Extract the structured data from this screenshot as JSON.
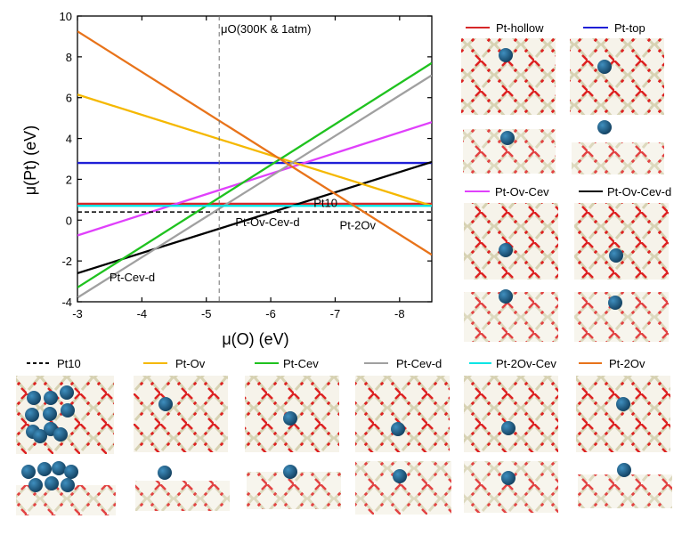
{
  "chart_data": {
    "type": "line",
    "xlabel": "μ(O) (eV)",
    "ylabel": "μ(Pt) (eV)",
    "xlim": [
      -3,
      -8.5
    ],
    "ylim": [
      -4,
      10
    ],
    "x_ticks": [
      "-3",
      "-4",
      "-5",
      "-6",
      "-7",
      "-8"
    ],
    "y_ticks": [
      "-4",
      "-2",
      "0",
      "2",
      "4",
      "6",
      "8",
      "10"
    ],
    "reference_line": {
      "x": -5.2,
      "label": "μO(300K & 1atm)"
    },
    "series": [
      {
        "name": "Pt-hollow",
        "color": "#d62728",
        "x": [
          -3,
          -8.5
        ],
        "y": [
          0.8,
          0.8
        ]
      },
      {
        "name": "Pt-top",
        "color": "#1f1fd6",
        "x": [
          -3,
          -8.5
        ],
        "y": [
          2.8,
          2.8
        ]
      },
      {
        "name": "Pt-Ov-Cev",
        "color": "#e040fb",
        "x": [
          -3,
          -8.5
        ],
        "y": [
          -0.75,
          4.8
        ]
      },
      {
        "name": "Pt-Ov-Cev-d",
        "color": "#000000",
        "x": [
          -3,
          -8.5
        ],
        "y": [
          -2.6,
          2.85
        ]
      },
      {
        "name": "Pt10",
        "color": "#000000",
        "x": [
          -3,
          -8.5
        ],
        "y": [
          0.4,
          0.4
        ],
        "dashed": true
      },
      {
        "name": "Pt-Ov",
        "color": "#f5b800",
        "x": [
          -3,
          -8.5
        ],
        "y": [
          6.15,
          0.7
        ]
      },
      {
        "name": "Pt-Cev",
        "color": "#1fc21f",
        "x": [
          -3,
          -8.5
        ],
        "y": [
          -3.3,
          7.7
        ]
      },
      {
        "name": "Pt-Cev-d",
        "color": "#a0a0a0",
        "x": [
          -3,
          -8.5
        ],
        "y": [
          -3.8,
          7.1
        ]
      },
      {
        "name": "Pt-2Ov-Cev",
        "color": "#00e5e5",
        "x": [
          -3,
          -8.5
        ],
        "y": [
          0.7,
          0.7
        ]
      },
      {
        "name": "Pt-2Ov",
        "color": "#e8731a",
        "x": [
          -3,
          -8.5
        ],
        "y": [
          9.25,
          -1.7
        ]
      }
    ],
    "annotations": [
      {
        "text": "Pt-Ov-Cev-d",
        "x": -5.95,
        "y": -0.3
      },
      {
        "text": "Pt10",
        "x": -6.85,
        "y": 0.65
      },
      {
        "text": "Pt-2Ov",
        "x": -7.35,
        "y": -0.45
      },
      {
        "text": "Pt-Cev-d",
        "x": -3.85,
        "y": -3.0
      }
    ]
  },
  "legend": {
    "right_panel": [
      {
        "label": "Pt-hollow",
        "color": "#d62728"
      },
      {
        "label": "Pt-top",
        "color": "#1f1fd6"
      },
      {
        "label": "Pt-Ov-Cev",
        "color": "#e040fb"
      },
      {
        "label": "Pt-Ov-Cev-d",
        "color": "#000000"
      }
    ],
    "bottom_panel": [
      {
        "label": "Pt10",
        "color": "#000000",
        "dashed": true
      },
      {
        "label": "Pt-Ov",
        "color": "#f5b800"
      },
      {
        "label": "Pt-Cev",
        "color": "#1fc21f"
      },
      {
        "label": "Pt-Cev-d",
        "color": "#a0a0a0"
      },
      {
        "label": "Pt-2Ov-Cev",
        "color": "#00e5e5"
      },
      {
        "label": "Pt-2Ov",
        "color": "#e8731a"
      }
    ]
  },
  "colors": {
    "pt_atom": "#1f5f86",
    "oxygen": "#dd2222",
    "cerium": "#d8d4b8"
  }
}
